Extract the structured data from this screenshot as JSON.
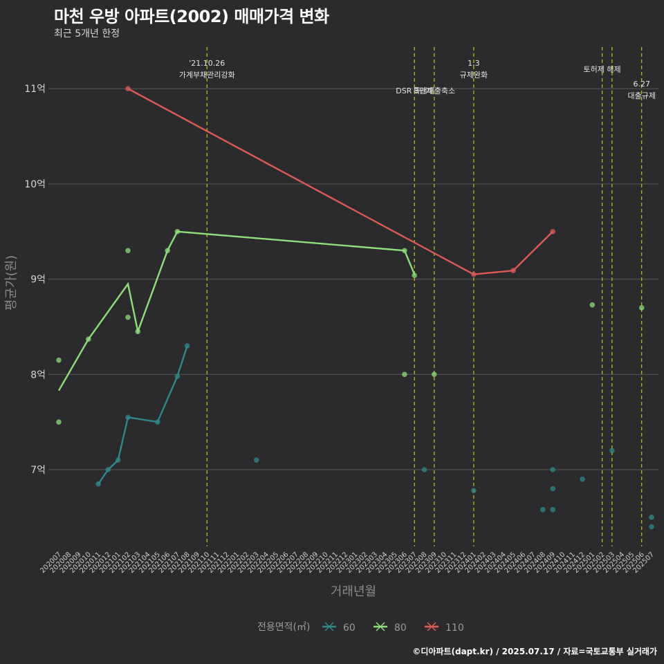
{
  "title": "마천 우방 아파트(2002) 매매가격 변화",
  "subtitle": "최근 5개년 한정",
  "caption": "©디아파트(dapt.kr) / 2025.07.17 / 자료=국토교통부 실거래가",
  "chart_data": {
    "type": "line",
    "xlabel": "거래년월",
    "ylabel": "평균가(원)",
    "ylim": [
      6.2,
      11.5
    ],
    "y_ticks": [
      {
        "value": 7,
        "label": "7억"
      },
      {
        "value": 8,
        "label": "8억"
      },
      {
        "value": 9,
        "label": "9억"
      },
      {
        "value": 10,
        "label": "10억"
      },
      {
        "value": 11,
        "label": "11억"
      }
    ],
    "x_start": "202007",
    "x_end": "202507",
    "legend_title": "전용면적(㎡)",
    "legend_position": "bottom",
    "series": [
      {
        "name": "60",
        "color": "#2e8b8b",
        "line": [
          [
            "202011",
            6.85
          ],
          [
            "202012",
            7.0
          ],
          [
            "202101",
            7.1
          ],
          [
            "202102",
            7.55
          ],
          [
            "202105",
            7.5
          ],
          [
            "202107",
            7.98
          ],
          [
            "202108",
            8.3
          ]
        ],
        "points": [
          [
            "202011",
            6.85
          ],
          [
            "202012",
            7.0
          ],
          [
            "202101",
            7.1
          ],
          [
            "202102",
            7.55
          ],
          [
            "202105",
            7.5
          ],
          [
            "202107",
            7.98
          ],
          [
            "202108",
            8.3
          ],
          [
            "202203",
            7.1
          ],
          [
            "202308",
            7.0
          ],
          [
            "202401",
            6.78
          ],
          [
            "202408",
            6.58
          ],
          [
            "202409",
            6.8
          ],
          [
            "202409",
            6.58
          ],
          [
            "202409",
            7.0
          ],
          [
            "202412",
            6.9
          ],
          [
            "202503",
            7.2
          ],
          [
            "202507",
            6.5
          ],
          [
            "202507",
            6.4
          ]
        ]
      },
      {
        "name": "80",
        "color": "#8ee07a",
        "line": [
          [
            "202007",
            7.83
          ],
          [
            "202010",
            8.37
          ],
          [
            "202102",
            8.95
          ],
          [
            "202103",
            8.45
          ],
          [
            "202106",
            9.3
          ],
          [
            "202107",
            9.5
          ],
          [
            "202306",
            9.3
          ],
          [
            "202307",
            9.05
          ],
          [
            "202306",
            9.3
          ],
          [
            "202307",
            9.04
          ],
          [
            "202307",
            9.04
          ],
          [
            "202307",
            9.04
          ]
        ],
        "points": [
          [
            "202007",
            8.15
          ],
          [
            "202007",
            7.5
          ],
          [
            "202010",
            8.37
          ],
          [
            "202102",
            9.3
          ],
          [
            "202102",
            8.6
          ],
          [
            "202103",
            8.45
          ],
          [
            "202106",
            9.3
          ],
          [
            "202107",
            9.5
          ],
          [
            "202306",
            9.3
          ],
          [
            "202307",
            9.04
          ],
          [
            "202306",
            8.0
          ],
          [
            "202309",
            8.0
          ],
          [
            "202501",
            8.73
          ],
          [
            "202506",
            8.7
          ]
        ]
      },
      {
        "name": "110",
        "color": "#e05a55",
        "line": [
          [
            "202102",
            11.0
          ],
          [
            "202401",
            9.05
          ],
          [
            "202405",
            9.09
          ],
          [
            "202409",
            9.5
          ]
        ],
        "points": [
          [
            "202102",
            11.0
          ],
          [
            "202401",
            9.05
          ],
          [
            "202405",
            9.09
          ],
          [
            "202409",
            9.5
          ]
        ]
      }
    ],
    "events": [
      {
        "month": "202110",
        "label": "'21.10.26\n가계부채관리강화",
        "row": "top"
      },
      {
        "month": "202307",
        "label": "DSR 3단계",
        "row": "low"
      },
      {
        "month": "202401",
        "label": "1.3\n규제완화",
        "row": "top"
      },
      {
        "month": "202309",
        "label": "특례대출축소",
        "row": "low"
      },
      {
        "month": "202502",
        "label": "토허제 해제",
        "row": "top"
      },
      {
        "month": "202503",
        "label": "",
        "row": "top"
      },
      {
        "month": "202506",
        "label": "6.27\n대출규제",
        "row": "mid"
      }
    ]
  }
}
